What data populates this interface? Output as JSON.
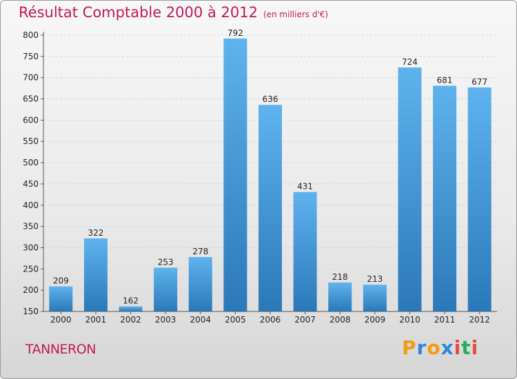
{
  "header": {
    "title": "Résultat Comptable 2000 à 2012",
    "subtitle": "(en milliers d'€)"
  },
  "footer": {
    "town": "TANNERON",
    "brand_letters": [
      "P",
      "r",
      "o",
      "x",
      "i",
      "t",
      "i"
    ],
    "brand_colors": [
      "#f39c12",
      "#2e86de",
      "#f39c12",
      "#2e86de",
      "#e74c3c",
      "#27ae60",
      "#e74c3c"
    ]
  },
  "colors": {
    "bar_top": "#5eb3ee",
    "bar_bottom": "#2b78b8",
    "title": "#c2185b"
  },
  "chart_data": {
    "type": "bar",
    "title": "Résultat Comptable 2000 à 2012",
    "xlabel": "",
    "ylabel": "",
    "categories": [
      "2000",
      "2001",
      "2002",
      "2003",
      "2004",
      "2005",
      "2006",
      "2007",
      "2008",
      "2009",
      "2010",
      "2011",
      "2012"
    ],
    "values": [
      209,
      322,
      162,
      253,
      278,
      792,
      636,
      431,
      218,
      213,
      724,
      681,
      677
    ],
    "ylim": [
      150,
      800
    ],
    "yticks": [
      150,
      200,
      250,
      300,
      350,
      400,
      450,
      500,
      550,
      600,
      650,
      700,
      750,
      800
    ],
    "grid": true
  }
}
